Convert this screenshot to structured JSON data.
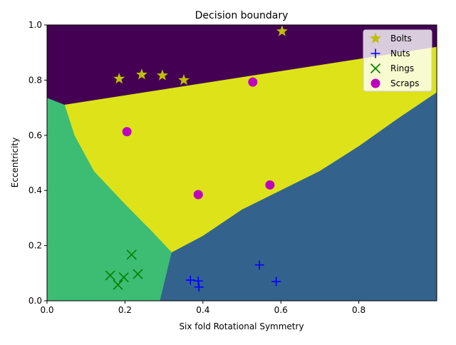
{
  "chart_data": {
    "type": "scatter",
    "title": "Decision boundary",
    "xlabel": "Six fold Rotational Symmetry",
    "ylabel": "Eccentricity",
    "xlim": [
      0,
      1.0
    ],
    "ylim": [
      0,
      1.0
    ],
    "xticks": [
      0.0,
      0.2,
      0.4,
      0.6,
      0.8
    ],
    "yticks": [
      0.0,
      0.2,
      0.4,
      0.6,
      0.8,
      1.0
    ],
    "xtick_labels": [
      "0.0",
      "0.2",
      "0.4",
      "0.6",
      "0.8"
    ],
    "ytick_labels": [
      "0.0",
      "0.2",
      "0.4",
      "0.6",
      "0.8",
      "1.0"
    ],
    "legend_position": "top-right",
    "grid": false,
    "regions": [
      {
        "name": "bolts-region",
        "color": "#440154",
        "polygon": [
          [
            0,
            1
          ],
          [
            1,
            1
          ],
          [
            1,
            0.92
          ],
          [
            0.045,
            0.71
          ],
          [
            0,
            0.735
          ]
        ]
      },
      {
        "name": "scraps-region",
        "color": "#dde318",
        "polygon": [
          [
            0.045,
            0.71
          ],
          [
            1,
            0.92
          ],
          [
            1,
            0.755
          ],
          [
            0.9,
            0.66
          ],
          [
            0.8,
            0.56
          ],
          [
            0.7,
            0.47
          ],
          [
            0.6,
            0.4
          ],
          [
            0.5,
            0.33
          ],
          [
            0.4,
            0.235
          ],
          [
            0.32,
            0.175
          ],
          [
            0.27,
            0.25
          ],
          [
            0.2,
            0.35
          ],
          [
            0.12,
            0.47
          ],
          [
            0.07,
            0.6
          ],
          [
            0.045,
            0.71
          ]
        ]
      },
      {
        "name": "rings-region",
        "color": "#3dbc74",
        "polygon": [
          [
            0,
            0.735
          ],
          [
            0.045,
            0.71
          ],
          [
            0.07,
            0.6
          ],
          [
            0.12,
            0.47
          ],
          [
            0.2,
            0.35
          ],
          [
            0.27,
            0.25
          ],
          [
            0.32,
            0.175
          ],
          [
            0.29,
            0
          ],
          [
            0,
            0
          ]
        ]
      },
      {
        "name": "nuts-region",
        "color": "#33638d",
        "polygon": [
          [
            0.29,
            0
          ],
          [
            0.32,
            0.175
          ],
          [
            0.4,
            0.235
          ],
          [
            0.5,
            0.33
          ],
          [
            0.6,
            0.4
          ],
          [
            0.7,
            0.47
          ],
          [
            0.8,
            0.56
          ],
          [
            0.9,
            0.66
          ],
          [
            1,
            0.755
          ],
          [
            1,
            0
          ]
        ]
      }
    ],
    "series": [
      {
        "name": "Bolts",
        "marker": "star",
        "color": "#bfbf00",
        "points": [
          [
            0.185,
            0.805
          ],
          [
            0.243,
            0.82
          ],
          [
            0.296,
            0.817
          ],
          [
            0.351,
            0.8
          ],
          [
            0.603,
            0.977
          ]
        ]
      },
      {
        "name": "Nuts",
        "marker": "plus",
        "color": "#0000ff",
        "points": [
          [
            0.368,
            0.075
          ],
          [
            0.388,
            0.072
          ],
          [
            0.39,
            0.05
          ],
          [
            0.545,
            0.13
          ],
          [
            0.588,
            0.07
          ]
        ]
      },
      {
        "name": "Rings",
        "marker": "x",
        "color": "#008000",
        "points": [
          [
            0.162,
            0.092
          ],
          [
            0.182,
            0.058
          ],
          [
            0.197,
            0.085
          ],
          [
            0.217,
            0.167
          ],
          [
            0.233,
            0.097
          ]
        ]
      },
      {
        "name": "Scraps",
        "marker": "circle",
        "color": "#bf00bf",
        "points": [
          [
            0.205,
            0.613
          ],
          [
            0.388,
            0.385
          ],
          [
            0.528,
            0.793
          ],
          [
            0.572,
            0.42
          ]
        ]
      }
    ]
  }
}
